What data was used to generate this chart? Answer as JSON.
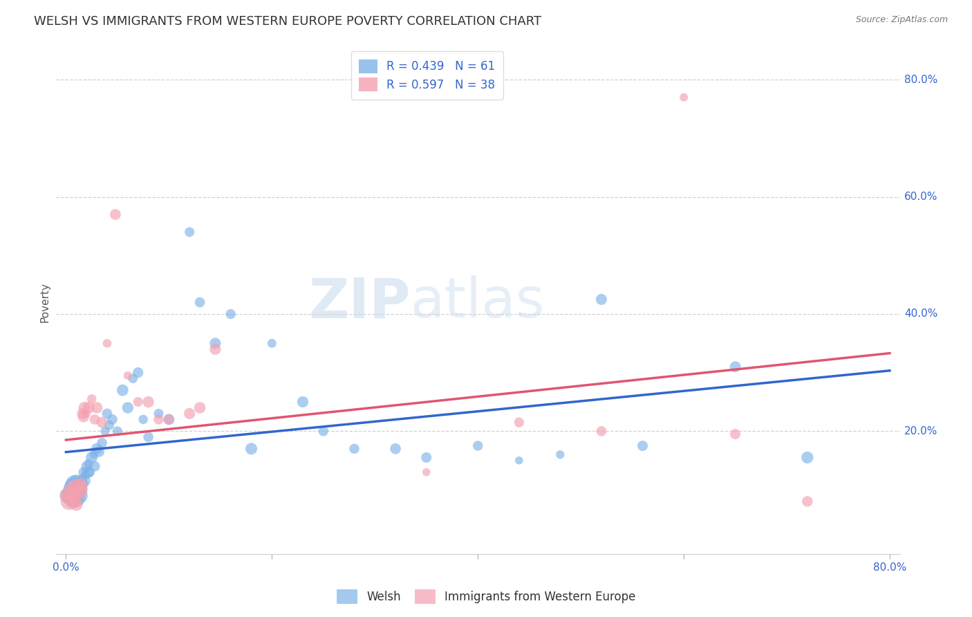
{
  "title": "WELSH VS IMMIGRANTS FROM WESTERN EUROPE POVERTY CORRELATION CHART",
  "source": "Source: ZipAtlas.com",
  "ylabel": "Poverty",
  "x_min": 0.0,
  "x_max": 0.8,
  "y_min": 0.0,
  "y_max": 0.85,
  "welsh_color": "#7EB3E8",
  "immigrant_color": "#F4A0B0",
  "welsh_line_color": "#3366CC",
  "immigrant_line_color": "#E05570",
  "R_welsh": 0.439,
  "N_welsh": 61,
  "R_immigrant": 0.597,
  "N_immigrant": 38,
  "legend_label_color": "#3366CC",
  "watermark_text": "ZIP",
  "watermark_text2": "atlas",
  "background_color": "#FFFFFF",
  "grid_color": "#CCCCCC",
  "title_fontsize": 13,
  "axis_label_fontsize": 11,
  "tick_fontsize": 11,
  "legend_fontsize": 12,
  "welsh_x": [
    0.002,
    0.003,
    0.004,
    0.005,
    0.006,
    0.007,
    0.008,
    0.008,
    0.009,
    0.01,
    0.01,
    0.011,
    0.012,
    0.013,
    0.014,
    0.015,
    0.016,
    0.017,
    0.018,
    0.019,
    0.02,
    0.021,
    0.022,
    0.023,
    0.025,
    0.027,
    0.028,
    0.03,
    0.032,
    0.035,
    0.038,
    0.04,
    0.042,
    0.045,
    0.05,
    0.055,
    0.06,
    0.065,
    0.07,
    0.075,
    0.08,
    0.09,
    0.1,
    0.12,
    0.13,
    0.145,
    0.16,
    0.18,
    0.2,
    0.23,
    0.25,
    0.28,
    0.32,
    0.35,
    0.4,
    0.44,
    0.48,
    0.52,
    0.56,
    0.65,
    0.72
  ],
  "welsh_y": [
    0.09,
    0.085,
    0.095,
    0.1,
    0.08,
    0.105,
    0.095,
    0.11,
    0.1,
    0.085,
    0.115,
    0.105,
    0.095,
    0.09,
    0.11,
    0.1,
    0.12,
    0.13,
    0.115,
    0.125,
    0.14,
    0.13,
    0.145,
    0.13,
    0.155,
    0.16,
    0.14,
    0.17,
    0.165,
    0.18,
    0.2,
    0.23,
    0.21,
    0.22,
    0.2,
    0.27,
    0.24,
    0.29,
    0.3,
    0.22,
    0.19,
    0.23,
    0.22,
    0.54,
    0.42,
    0.35,
    0.4,
    0.17,
    0.35,
    0.25,
    0.2,
    0.17,
    0.17,
    0.155,
    0.175,
    0.15,
    0.16,
    0.425,
    0.175,
    0.31,
    0.155
  ],
  "immigrant_x": [
    0.002,
    0.003,
    0.004,
    0.005,
    0.006,
    0.007,
    0.008,
    0.009,
    0.01,
    0.011,
    0.013,
    0.014,
    0.015,
    0.016,
    0.017,
    0.018,
    0.02,
    0.022,
    0.025,
    0.028,
    0.03,
    0.035,
    0.04,
    0.048,
    0.06,
    0.07,
    0.08,
    0.09,
    0.1,
    0.12,
    0.13,
    0.145,
    0.35,
    0.44,
    0.52,
    0.6,
    0.65,
    0.72
  ],
  "immigrant_y": [
    0.09,
    0.08,
    0.095,
    0.085,
    0.1,
    0.09,
    0.08,
    0.105,
    0.075,
    0.095,
    0.1,
    0.11,
    0.105,
    0.23,
    0.225,
    0.24,
    0.23,
    0.24,
    0.255,
    0.22,
    0.24,
    0.215,
    0.35,
    0.57,
    0.295,
    0.25,
    0.25,
    0.22,
    0.22,
    0.23,
    0.24,
    0.34,
    0.13,
    0.215,
    0.2,
    0.77,
    0.195,
    0.08
  ]
}
